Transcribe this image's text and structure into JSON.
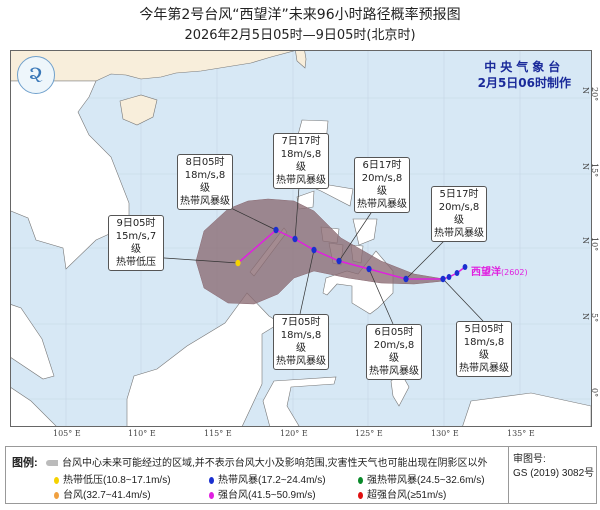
{
  "header": {
    "title": "今年第2号台风“西望洋”未来96小时路径概率预报图",
    "subtitle": "2026年2月5日05时—9日05时(北京时)"
  },
  "agency": {
    "name": "中央气象台",
    "issued": "2月5日06时制作"
  },
  "storm": {
    "name": "西望洋",
    "code": "(2602)",
    "color": "#e020e0"
  },
  "forecast_points": [
    {
      "time": "5日05时",
      "wind": "18m/s,8级",
      "grade": "热带风暴级",
      "color": "#1a2fd0"
    },
    {
      "time": "5日17时",
      "wind": "20m/s,8级",
      "grade": "热带风暴级",
      "color": "#1a2fd0"
    },
    {
      "time": "6日05时",
      "wind": "20m/s,8级",
      "grade": "热带风暴级",
      "color": "#1a2fd0"
    },
    {
      "time": "6日17时",
      "wind": "20m/s,8级",
      "grade": "热带风暴级",
      "color": "#1a2fd0"
    },
    {
      "time": "7日05时",
      "wind": "18m/s,8级",
      "grade": "热带风暴级",
      "color": "#1a2fd0"
    },
    {
      "time": "7日17时",
      "wind": "18m/s,8级",
      "grade": "热带风暴级",
      "color": "#1a2fd0"
    },
    {
      "time": "8日05时",
      "wind": "18m/s,8级",
      "grade": "热带风暴级",
      "color": "#1a2fd0"
    },
    {
      "time": "9日05时",
      "wind": "15m/s,7级",
      "grade": "热带低压",
      "color": "#f5d200"
    }
  ],
  "axes": {
    "lon": [
      "105° E",
      "110° E",
      "115° E",
      "120° E",
      "125° E",
      "130° E",
      "135° E"
    ],
    "lat": [
      "20° N",
      "15° N",
      "10° N",
      "5° N",
      "0°"
    ]
  },
  "legend": {
    "title": "图例:",
    "cone": "台风中心未来可能经过的区域,并不表示台风大小及影响范围,灾害性天气也可能出现在阴影区以外",
    "items": [
      {
        "label": "热带低压(10.8~17.1m/s)",
        "color": "#f5d200"
      },
      {
        "label": "热带风暴(17.2~24.4m/s)",
        "color": "#1a2fd0"
      },
      {
        "label": "强热带风暴(24.5~32.6m/s)",
        "color": "#0a8a2a"
      },
      {
        "label": "台风(32.7~41.4m/s)",
        "color": "#f0a040"
      },
      {
        "label": "强台风(41.5~50.9m/s)",
        "color": "#e020e0"
      },
      {
        "label": "超强台风(≥51m/s)",
        "color": "#e01010"
      }
    ],
    "review_label": "审图号:",
    "review_no": "GS (2019) 3082号"
  }
}
